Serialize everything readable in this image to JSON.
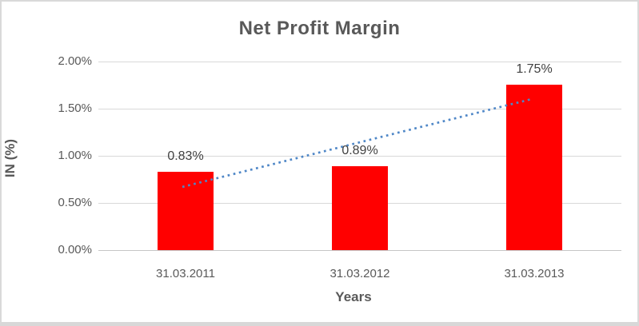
{
  "window": {
    "background": "#FFFFFF",
    "border_color": "#D9D9D9"
  },
  "chart_data": {
    "type": "bar",
    "title": "Net Profit Margin",
    "xlabel": "Years",
    "ylabel": "IN (%)",
    "categories": [
      "31.03.2011",
      "31.03.2012",
      "31.03.2013"
    ],
    "series": [
      {
        "name": "Net Profit Margin",
        "values": [
          0.83,
          0.89,
          1.75
        ]
      }
    ],
    "data_labels": [
      "0.83%",
      "0.89%",
      "1.75%"
    ],
    "ylim": [
      0,
      2
    ],
    "yticks": [
      {
        "value": 0.0,
        "label": "0.00%"
      },
      {
        "value": 0.5,
        "label": "0.50%"
      },
      {
        "value": 1.0,
        "label": "1.00%"
      },
      {
        "value": 1.5,
        "label": "1.50%"
      },
      {
        "value": 2.0,
        "label": "2.00%"
      }
    ],
    "grid": true,
    "legend": false,
    "trendline": {
      "style": "dotted",
      "start": {
        "category_index": 0,
        "value": 0.67
      },
      "end": {
        "category_index": 2,
        "value": 1.6
      }
    },
    "colors": {
      "bar": "#FF0000",
      "trendline": "#4F87C7",
      "title_text": "#595959",
      "tick_text": "#595959",
      "data_label_text": "#404040",
      "gridline": "#D9D9D9",
      "axis_line": "#C6C6C6"
    }
  }
}
